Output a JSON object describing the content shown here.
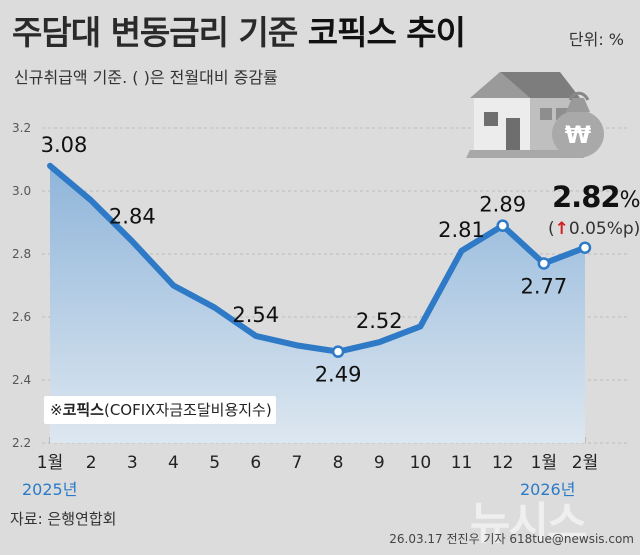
{
  "header": {
    "title_prefix": "주담대 변동금리 기준 ",
    "title_emphasis": "코픽스 추이",
    "unit": "단위: %",
    "subtitle": "신규취급액 기준. ( )은 전월대비 증감률"
  },
  "note": {
    "prefix": "※",
    "bold": "코픽스",
    "rest": "(COFIX자금조달비용지수)"
  },
  "source": "자료: 은행연합회",
  "credit": "26.03.17 전진우 기자 618tue@newsis.com",
  "watermark": "뉴시스",
  "years": {
    "first": "2025년",
    "second": "2026년"
  },
  "latest": {
    "value": "2.82",
    "percent_sign": "%",
    "change_open": "(",
    "change_arrow": "↑",
    "change_text": "0.05%p)"
  },
  "colors": {
    "line": "#2f7ac6",
    "marker_fill": "#ffffff",
    "area_top": "#8fb5da",
    "area_bottom": "#dde7f0",
    "arrow": "#d22020"
  },
  "chart_data": {
    "type": "area",
    "categories": [
      "1월",
      "2",
      "3",
      "4",
      "5",
      "6",
      "7",
      "8",
      "9",
      "10",
      "11",
      "12",
      "1월",
      "2월"
    ],
    "values": [
      3.08,
      2.97,
      2.84,
      2.7,
      2.63,
      2.54,
      2.51,
      2.49,
      2.52,
      2.57,
      2.81,
      2.89,
      2.77,
      2.82
    ],
    "data_labels": [
      "3.08",
      "",
      "2.84",
      "",
      "",
      "2.54",
      "",
      "2.49",
      "2.52",
      "",
      "2.81",
      "2.89",
      "2.77",
      ""
    ],
    "markers": [
      false,
      false,
      false,
      false,
      false,
      false,
      false,
      true,
      false,
      false,
      false,
      true,
      true,
      true
    ],
    "ylim": [
      2.2,
      3.2
    ],
    "yticks": [
      "2.2",
      "2.4",
      "2.6",
      "2.8",
      "3.0",
      "3.2"
    ],
    "grid": true,
    "xlabel": "",
    "ylabel": ""
  }
}
